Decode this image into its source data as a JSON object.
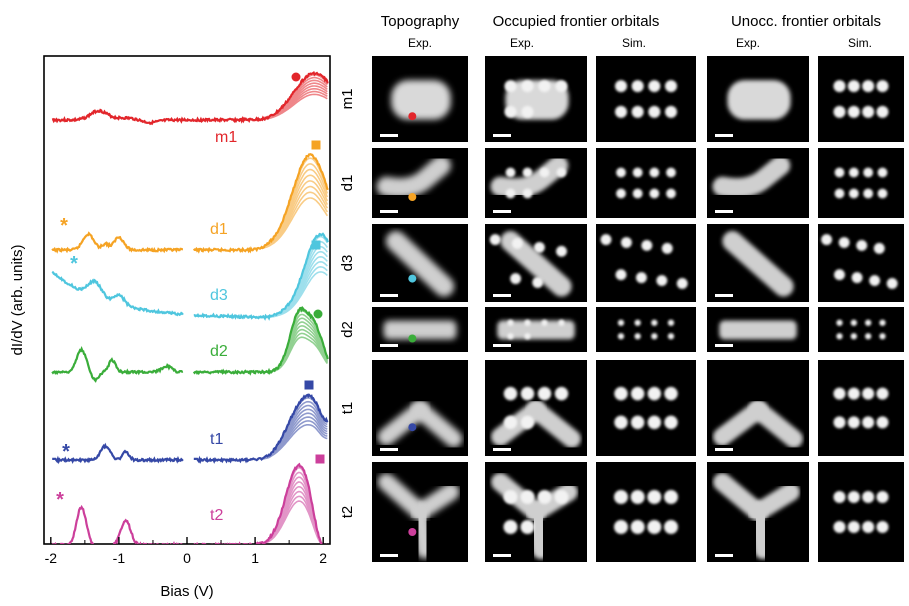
{
  "colors": {
    "m1": "#e2262b",
    "d1": "#f5a324",
    "d3": "#4fc6de",
    "d2": "#3aad3a",
    "t1": "#3548a6",
    "t2": "#cc3f9b"
  },
  "spectra_panel": {
    "ylabel": "dI/dV (arb. units)",
    "xlabel": "Bias (V)",
    "xticks": [
      "-2",
      "-1",
      "0",
      "1",
      "2"
    ],
    "xlim": [
      -2.1,
      2.1
    ],
    "markers": {
      "circle": "circle-marker",
      "square": "square-marker",
      "star": "*"
    },
    "traces": [
      {
        "key": "m1",
        "label": "m1",
        "marker": "circle",
        "star": false
      },
      {
        "key": "d1",
        "label": "d1",
        "marker": "square",
        "star": true
      },
      {
        "key": "d3",
        "label": "d3",
        "marker": "square",
        "star": true
      },
      {
        "key": "d2",
        "label": "d2",
        "marker": "circle",
        "star": false
      },
      {
        "key": "t1",
        "label": "t1",
        "marker": "square",
        "star": true
      },
      {
        "key": "t2",
        "label": "t2",
        "marker": "square",
        "star": true
      }
    ]
  },
  "images_panel": {
    "groups": [
      {
        "title": "Topography",
        "subs": [
          "Exp."
        ]
      },
      {
        "title": "Occupied frontier orbitals",
        "subs": [
          "Exp.",
          "Sim."
        ]
      },
      {
        "title": "Unocc. frontier orbitals",
        "subs": [
          "Exp.",
          "Sim."
        ]
      }
    ],
    "rows": [
      {
        "label": "m1",
        "key": "m1",
        "shape": "blob",
        "lobes": "grid"
      },
      {
        "label": "d1",
        "key": "d1",
        "shape": "bent",
        "lobes": "grid"
      },
      {
        "label": "d3",
        "key": "d3",
        "shape": "diag",
        "lobes": "diag"
      },
      {
        "label": "d2",
        "key": "d2",
        "shape": "bar",
        "lobes": "grid"
      },
      {
        "label": "t1",
        "key": "t1",
        "shape": "tri",
        "lobes": "grid"
      },
      {
        "label": "t2",
        "key": "t2",
        "shape": "tri2",
        "lobes": "grid"
      }
    ]
  }
}
